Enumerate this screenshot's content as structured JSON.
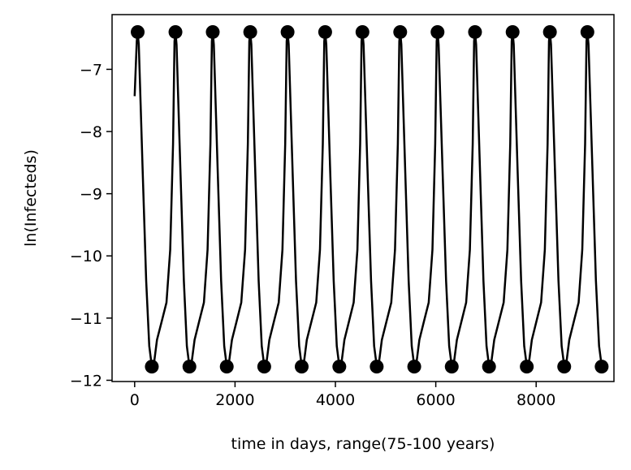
{
  "chart_data": {
    "type": "line",
    "title": "",
    "xlabel": "time in days, range(75-100 years)",
    "ylabel": "ln(Infecteds)",
    "xlim": [
      -450,
      9550
    ],
    "ylim": [
      -12.02,
      -6.12
    ],
    "xticks": [
      0,
      2000,
      4000,
      6000,
      8000
    ],
    "xtick_labels": [
      "0",
      "2000",
      "4000",
      "6000",
      "8000"
    ],
    "yticks": [
      -12,
      -11,
      -10,
      -9,
      -8,
      -7
    ],
    "ytick_labels": [
      "−12",
      "−11",
      "−10",
      "−9",
      "−8",
      "−7"
    ],
    "grid": false,
    "line_color": "#000000",
    "marker_color": "#000000",
    "series": [
      {
        "values": {
          "x": [
            0,
            25,
            50,
            75,
            100,
            130,
            170,
            210,
            250,
            290,
            330,
            400,
            500,
            600,
            700,
            752,
            760
          ],
          "y": [
            -7.43,
            -6.9,
            -6.55,
            -6.4,
            -6.6,
            -7.8,
            -9.8,
            -11.15,
            -11.72,
            -11.76,
            -11.7,
            -11.35,
            -11.12,
            -10.8,
            -9.2,
            -6.55,
            -6.4
          ]
        },
        "note_period_days": 730,
        "num_cycles": 12
      }
    ],
    "peaks": {
      "x": [
        60,
        813,
        1556,
        2303,
        3047,
        3796,
        4539,
        5291,
        6035,
        6782,
        7531,
        8274,
        9021
      ],
      "y": [
        -6.4,
        -6.4,
        -6.4,
        -6.4,
        -6.4,
        -6.4,
        -6.4,
        -6.4,
        -6.4,
        -6.4,
        -6.4,
        -6.4,
        -6.4
      ]
    },
    "troughs": {
      "x": [
        342,
        1091,
        1835,
        2582,
        3328,
        4078,
        4823,
        5571,
        6318,
        7061,
        7813,
        8559,
        9305
      ],
      "y": [
        -11.78,
        -11.78,
        -11.78,
        -11.78,
        -11.78,
        -11.78,
        -11.78,
        -11.78,
        -11.78,
        -11.78,
        -11.78,
        -11.78,
        -11.78
      ]
    }
  }
}
